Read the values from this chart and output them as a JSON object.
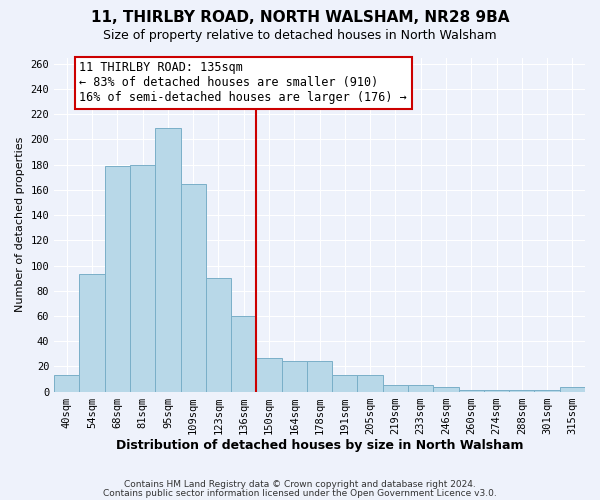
{
  "title": "11, THIRLBY ROAD, NORTH WALSHAM, NR28 9BA",
  "subtitle": "Size of property relative to detached houses in North Walsham",
  "xlabel": "Distribution of detached houses by size in North Walsham",
  "ylabel": "Number of detached properties",
  "bar_labels": [
    "40sqm",
    "54sqm",
    "68sqm",
    "81sqm",
    "95sqm",
    "109sqm",
    "123sqm",
    "136sqm",
    "150sqm",
    "164sqm",
    "178sqm",
    "191sqm",
    "205sqm",
    "219sqm",
    "233sqm",
    "246sqm",
    "260sqm",
    "274sqm",
    "288sqm",
    "301sqm",
    "315sqm"
  ],
  "bar_heights": [
    13,
    93,
    179,
    180,
    209,
    165,
    90,
    60,
    27,
    24,
    24,
    13,
    13,
    5,
    5,
    4,
    1,
    1,
    1,
    1,
    4
  ],
  "bar_color": "#b8d8e8",
  "bar_edge_color": "#7aafc8",
  "vline_x": 7.5,
  "vline_color": "#cc0000",
  "annotation_title": "11 THIRLBY ROAD: 135sqm",
  "annotation_line1": "← 83% of detached houses are smaller (910)",
  "annotation_line2": "16% of semi-detached houses are larger (176) →",
  "annotation_box_edge": "#cc0000",
  "ylim": [
    0,
    265
  ],
  "yticks": [
    0,
    20,
    40,
    60,
    80,
    100,
    120,
    140,
    160,
    180,
    200,
    220,
    240,
    260
  ],
  "footer1": "Contains HM Land Registry data © Crown copyright and database right 2024.",
  "footer2": "Contains public sector information licensed under the Open Government Licence v3.0.",
  "background_color": "#eef2fb",
  "grid_color": "#ffffff",
  "title_fontsize": 11,
  "subtitle_fontsize": 9,
  "xlabel_fontsize": 9,
  "ylabel_fontsize": 8,
  "tick_fontsize": 7.5,
  "annotation_fontsize": 8.5,
  "footer_fontsize": 6.5
}
